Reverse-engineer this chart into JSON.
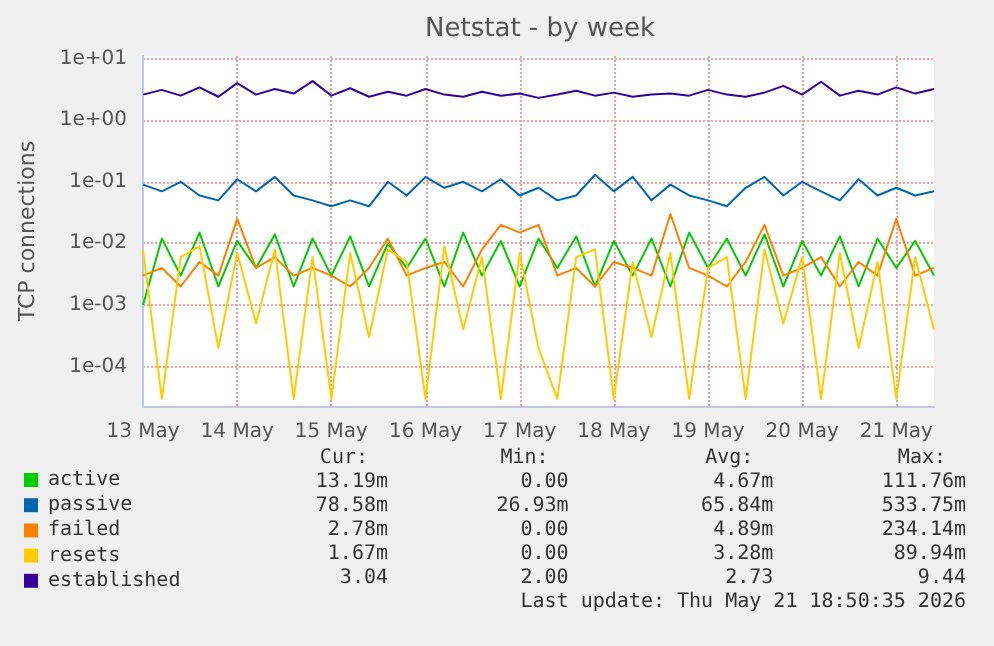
{
  "chart_data": {
    "type": "line",
    "title": "Netstat - by week",
    "ylabel": "TCP connections",
    "log": "y",
    "grid": true,
    "legend": "bottom left",
    "marker": "none",
    "line_style": "solid",
    "x": [
      "--05-13T00:00",
      "--05-13T04:48",
      "--05-13T09:36",
      "--05-13T14:24",
      "--05-13T19:12",
      "--05-14T00:00",
      "--05-14T04:48",
      "--05-14T09:36",
      "--05-14T14:24",
      "--05-14T19:12",
      "--05-15T00:00",
      "--05-15T04:48",
      "--05-15T09:36",
      "--05-15T14:24",
      "--05-15T19:12",
      "--05-16T00:00",
      "--05-16T04:48",
      "--05-16T09:36",
      "--05-16T14:24",
      "--05-16T19:12",
      "--05-17T00:00",
      "--05-17T04:48",
      "--05-17T09:36",
      "--05-17T14:24",
      "--05-17T19:12",
      "--05-18T00:00",
      "--05-18T04:48",
      "--05-18T09:36",
      "--05-18T14:24",
      "--05-18T19:12",
      "--05-19T00:00",
      "--05-19T04:48",
      "--05-19T09:36",
      "--05-19T14:24",
      "--05-19T19:12",
      "--05-20T00:00",
      "--05-20T04:48",
      "--05-20T09:36",
      "--05-20T14:24",
      "--05-20T19:12",
      "--05-21T00:00",
      "--05-21T04:48",
      "--05-21T09:36"
    ],
    "xlim": [
      "--05-13T00:00",
      "--05-21T09:36"
    ],
    "xticks": [
      {
        "value": "--05-13",
        "label": "13 May"
      },
      {
        "value": "--05-14",
        "label": "14 May"
      },
      {
        "value": "--05-15",
        "label": "15 May"
      },
      {
        "value": "--05-16",
        "label": "16 May"
      },
      {
        "value": "--05-17",
        "label": "17 May"
      },
      {
        "value": "--05-18",
        "label": "18 May"
      },
      {
        "value": "--05-19",
        "label": "19 May"
      },
      {
        "value": "--05-20",
        "label": "20 May"
      },
      {
        "value": "--05-21",
        "label": "21 May"
      }
    ],
    "ylim": [
      2.3e-05,
      11
    ],
    "yticks": [
      {
        "value": 0.0001,
        "label": "1e-04"
      },
      {
        "value": 0.001,
        "label": "1e-03"
      },
      {
        "value": 0.01,
        "label": "1e-02"
      },
      {
        "value": 0.1,
        "label": "1e-01"
      },
      {
        "value": 1,
        "label": "1e+00"
      },
      {
        "value": 10,
        "label": "1e+01"
      }
    ],
    "series": [
      {
        "name": "active",
        "color": "#00cc00",
        "values": [
          0.001,
          0.012,
          0.003,
          0.015,
          0.002,
          0.011,
          0.004,
          0.014,
          0.002,
          0.012,
          0.003,
          0.013,
          0.002,
          0.01,
          0.004,
          0.012,
          0.002,
          0.015,
          0.003,
          0.011,
          0.002,
          0.012,
          0.004,
          0.013,
          0.002,
          0.011,
          0.003,
          0.012,
          0.002,
          0.015,
          0.004,
          0.012,
          0.003,
          0.014,
          0.002,
          0.011,
          0.003,
          0.013,
          0.002,
          0.012,
          0.004,
          0.011,
          0.003
        ]
      },
      {
        "name": "passive",
        "color": "#0066b3",
        "values": [
          0.09,
          0.07,
          0.1,
          0.06,
          0.05,
          0.11,
          0.07,
          0.12,
          0.06,
          0.05,
          0.04,
          0.05,
          0.04,
          0.1,
          0.06,
          0.12,
          0.08,
          0.1,
          0.07,
          0.11,
          0.06,
          0.08,
          0.05,
          0.06,
          0.13,
          0.07,
          0.12,
          0.05,
          0.09,
          0.06,
          0.05,
          0.04,
          0.08,
          0.12,
          0.06,
          0.1,
          0.07,
          0.05,
          0.11,
          0.06,
          0.08,
          0.06,
          0.07
        ]
      },
      {
        "name": "failed",
        "color": "#ff8000",
        "values": [
          0.003,
          0.004,
          0.002,
          0.005,
          0.003,
          0.025,
          0.004,
          0.006,
          0.003,
          0.004,
          0.003,
          0.002,
          0.004,
          0.012,
          0.003,
          0.004,
          0.005,
          0.002,
          0.008,
          0.02,
          0.015,
          0.02,
          0.003,
          0.004,
          0.002,
          0.005,
          0.004,
          0.003,
          0.03,
          0.004,
          0.003,
          0.002,
          0.005,
          0.02,
          0.003,
          0.004,
          0.006,
          0.002,
          0.005,
          0.003,
          0.025,
          0.003,
          0.004
        ]
      },
      {
        "name": "resets",
        "color": "#ffcc00",
        "values": [
          0.008,
          3e-05,
          0.006,
          0.009,
          0.0002,
          0.007,
          0.0005,
          0.008,
          3e-05,
          0.006,
          3e-05,
          0.007,
          0.0003,
          0.008,
          0.005,
          3e-05,
          0.009,
          0.0004,
          0.006,
          3e-05,
          0.007,
          0.0002,
          3e-05,
          0.006,
          0.008,
          3e-05,
          0.005,
          0.0003,
          0.007,
          3e-05,
          0.004,
          0.006,
          3e-05,
          0.008,
          0.0005,
          0.006,
          3e-05,
          0.007,
          0.0002,
          0.005,
          3e-05,
          0.006,
          0.0004
        ]
      },
      {
        "name": "established",
        "color": "#330099",
        "values": [
          2.6,
          3.1,
          2.5,
          3.4,
          2.4,
          4.0,
          2.6,
          3.2,
          2.7,
          4.3,
          2.5,
          3.3,
          2.4,
          2.9,
          2.5,
          3.2,
          2.6,
          2.4,
          2.9,
          2.5,
          2.7,
          2.3,
          2.6,
          3.0,
          2.5,
          2.8,
          2.4,
          2.6,
          2.7,
          2.5,
          3.1,
          2.6,
          2.4,
          2.8,
          3.6,
          2.6,
          4.2,
          2.5,
          3.0,
          2.6,
          3.4,
          2.7,
          3.2
        ]
      }
    ],
    "annotations": [
      "Cur: Min: Avg: Max:",
      "13.19m 0.00 4.67m 111.76m",
      "78.58m 26.93m 65.84m 533.75m",
      "2.78m 0.00 4.89m 234.14m",
      "1.67m 0.00 3.28m 89.94m",
      "3.04 2.00 2.73 9.44",
      "Last update: Thu May 21 18:50:35 2026"
    ]
  }
}
